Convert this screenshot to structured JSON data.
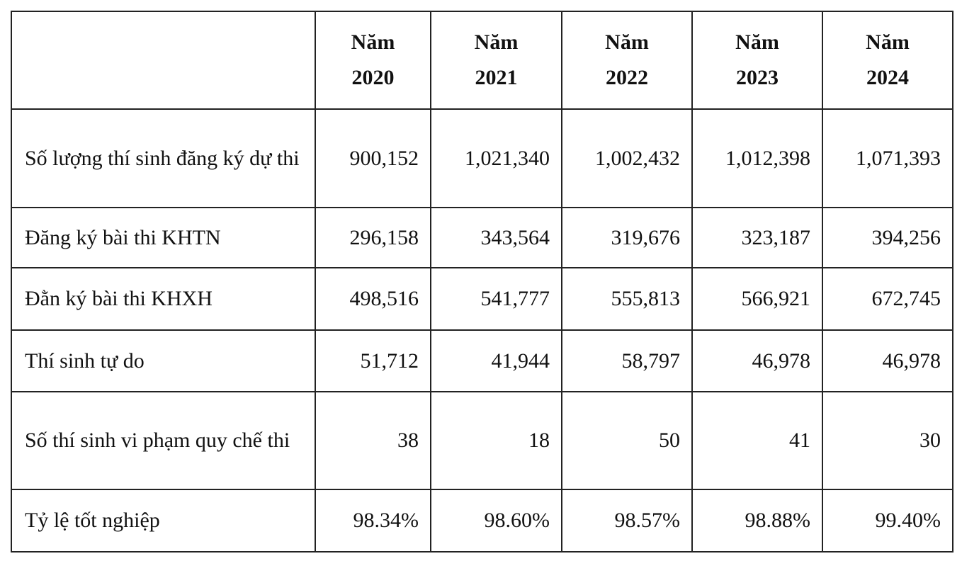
{
  "table": {
    "header": [
      [
        "Năm",
        "2020"
      ],
      [
        "Năm",
        "2021"
      ],
      [
        "Năm",
        "2022"
      ],
      [
        "Năm",
        "2023"
      ],
      [
        "Năm",
        "2024"
      ]
    ],
    "rows": [
      [
        "Số lượng thí sinh đăng ký dự thi",
        "900,152",
        "1,021,340",
        "1,002,432",
        "1,012,398",
        "1,071,393"
      ],
      [
        "Đăng ký bài thi KHTN",
        "296,158",
        "343,564",
        "319,676",
        "323,187",
        "394,256"
      ],
      [
        "Đằn ký bài thi KHXH",
        "498,516",
        "541,777",
        "555,813",
        "566,921",
        "672,745"
      ],
      [
        "Thí sinh tự do",
        "51,712",
        "41,944",
        "58,797",
        "46,978",
        "46,978"
      ],
      [
        "Số thí sinh vi phạm quy chế thi",
        "38",
        "18",
        "50",
        "41",
        "30"
      ],
      [
        "Tỷ lệ tốt nghiệp",
        "98.34%",
        "98.60%",
        "98.57%",
        "98.88%",
        "99.40%"
      ]
    ]
  }
}
